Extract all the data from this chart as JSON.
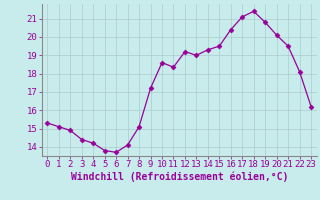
{
  "x": [
    0,
    1,
    2,
    3,
    4,
    5,
    6,
    7,
    8,
    9,
    10,
    11,
    12,
    13,
    14,
    15,
    16,
    17,
    18,
    19,
    20,
    21,
    22,
    23
  ],
  "y": [
    15.3,
    15.1,
    14.9,
    14.4,
    14.2,
    13.8,
    13.7,
    14.1,
    15.1,
    17.2,
    18.6,
    18.35,
    19.2,
    19.0,
    19.3,
    19.5,
    20.4,
    21.1,
    21.4,
    20.8,
    20.1,
    19.5,
    18.1,
    16.2
  ],
  "line_color": "#990099",
  "marker": "D",
  "marker_size": 2.5,
  "bg_color": "#c8ecec",
  "grid_color": "#aacccc",
  "xlabel": "Windchill (Refroidissement éolien,°C)",
  "tick_color": "#990099",
  "ylim": [
    13.5,
    21.8
  ],
  "yticks": [
    14,
    15,
    16,
    17,
    18,
    19,
    20,
    21
  ],
  "xticks": [
    0,
    1,
    2,
    3,
    4,
    5,
    6,
    7,
    8,
    9,
    10,
    11,
    12,
    13,
    14,
    15,
    16,
    17,
    18,
    19,
    20,
    21,
    22,
    23
  ],
  "font_size": 6.5,
  "label_font_size": 7.0,
  "spine_color": "#888888"
}
